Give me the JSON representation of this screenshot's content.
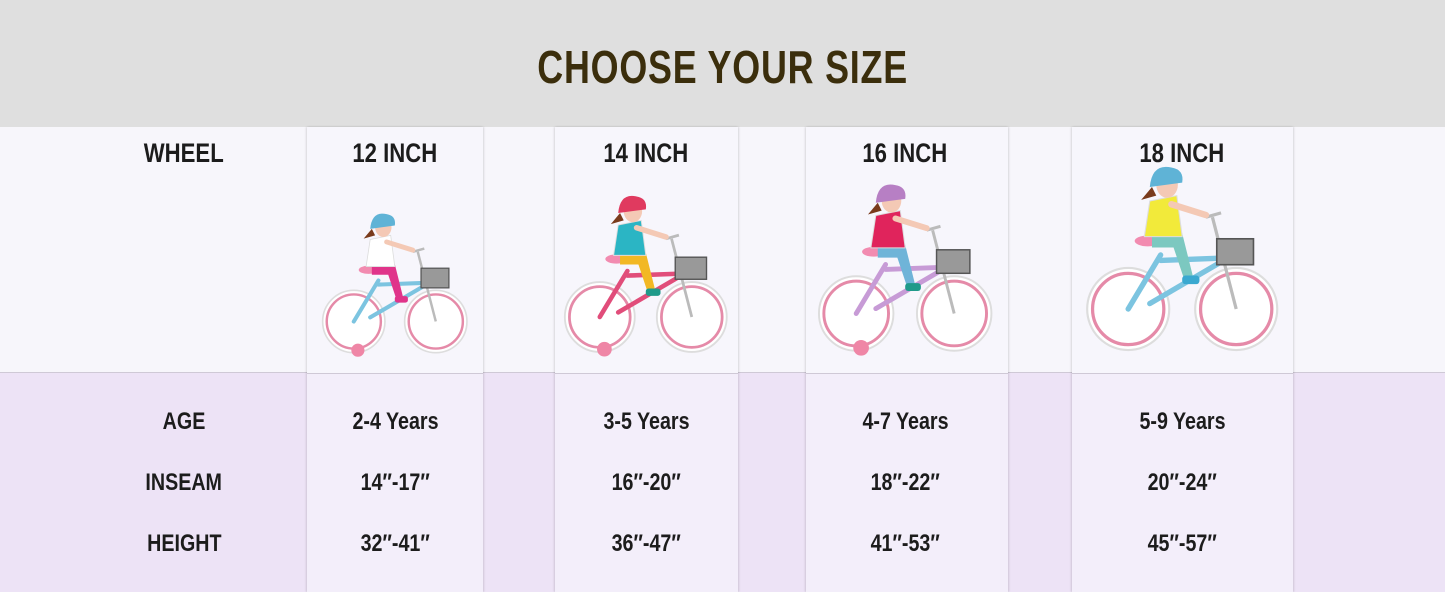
{
  "title": "CHOOSE YOUR SIZE",
  "row_labels": {
    "wheel": "WHEEL",
    "age": "AGE",
    "inseam": "INSEAM",
    "height": "HEIGHT"
  },
  "sizes": [
    {
      "wheel": "12 INCH",
      "age": "2-4 Years",
      "inseam": "14″-17″",
      "height": "32″-41″",
      "rider": {
        "helmet": "#5fb3d6",
        "shirt": "#ffffff",
        "pants": "#e0348a",
        "shoes": "#e0348a",
        "frame": "#7cc4e0",
        "training_wheels": true
      }
    },
    {
      "wheel": "14 INCH",
      "age": "3-5 Years",
      "inseam": "16″-20″",
      "height": "36″-47″",
      "rider": {
        "helmet": "#e03a5f",
        "shirt": "#2bb5c4",
        "pants": "#f2b824",
        "shoes": "#1f9a8a",
        "frame": "#e14d7a",
        "training_wheels": true
      }
    },
    {
      "wheel": "16 INCH",
      "age": "4-7 Years",
      "inseam": "18″-22″",
      "height": "41″-53″",
      "rider": {
        "helmet": "#b77fc4",
        "shirt": "#e0245c",
        "pants": "#6fb4d8",
        "shoes": "#1f9a8a",
        "frame": "#c79bd6",
        "training_wheels": true
      }
    },
    {
      "wheel": "18 INCH",
      "age": "5-9 Years",
      "inseam": "20″-24″",
      "height": "45″-57″",
      "rider": {
        "helmet": "#5fb3d6",
        "shirt": "#f2ea3a",
        "pants": "#7cc8c0",
        "shoes": "#3aa8d0",
        "frame": "#7cc4e0",
        "training_wheels": false
      }
    }
  ],
  "colors": {
    "header_bg": "#dfdfdf",
    "title": "#3b2e0c",
    "top_bg": "#f7f6fb",
    "bottom_bg": "#ede3f6",
    "wheel_rim": "#e58aa8"
  }
}
